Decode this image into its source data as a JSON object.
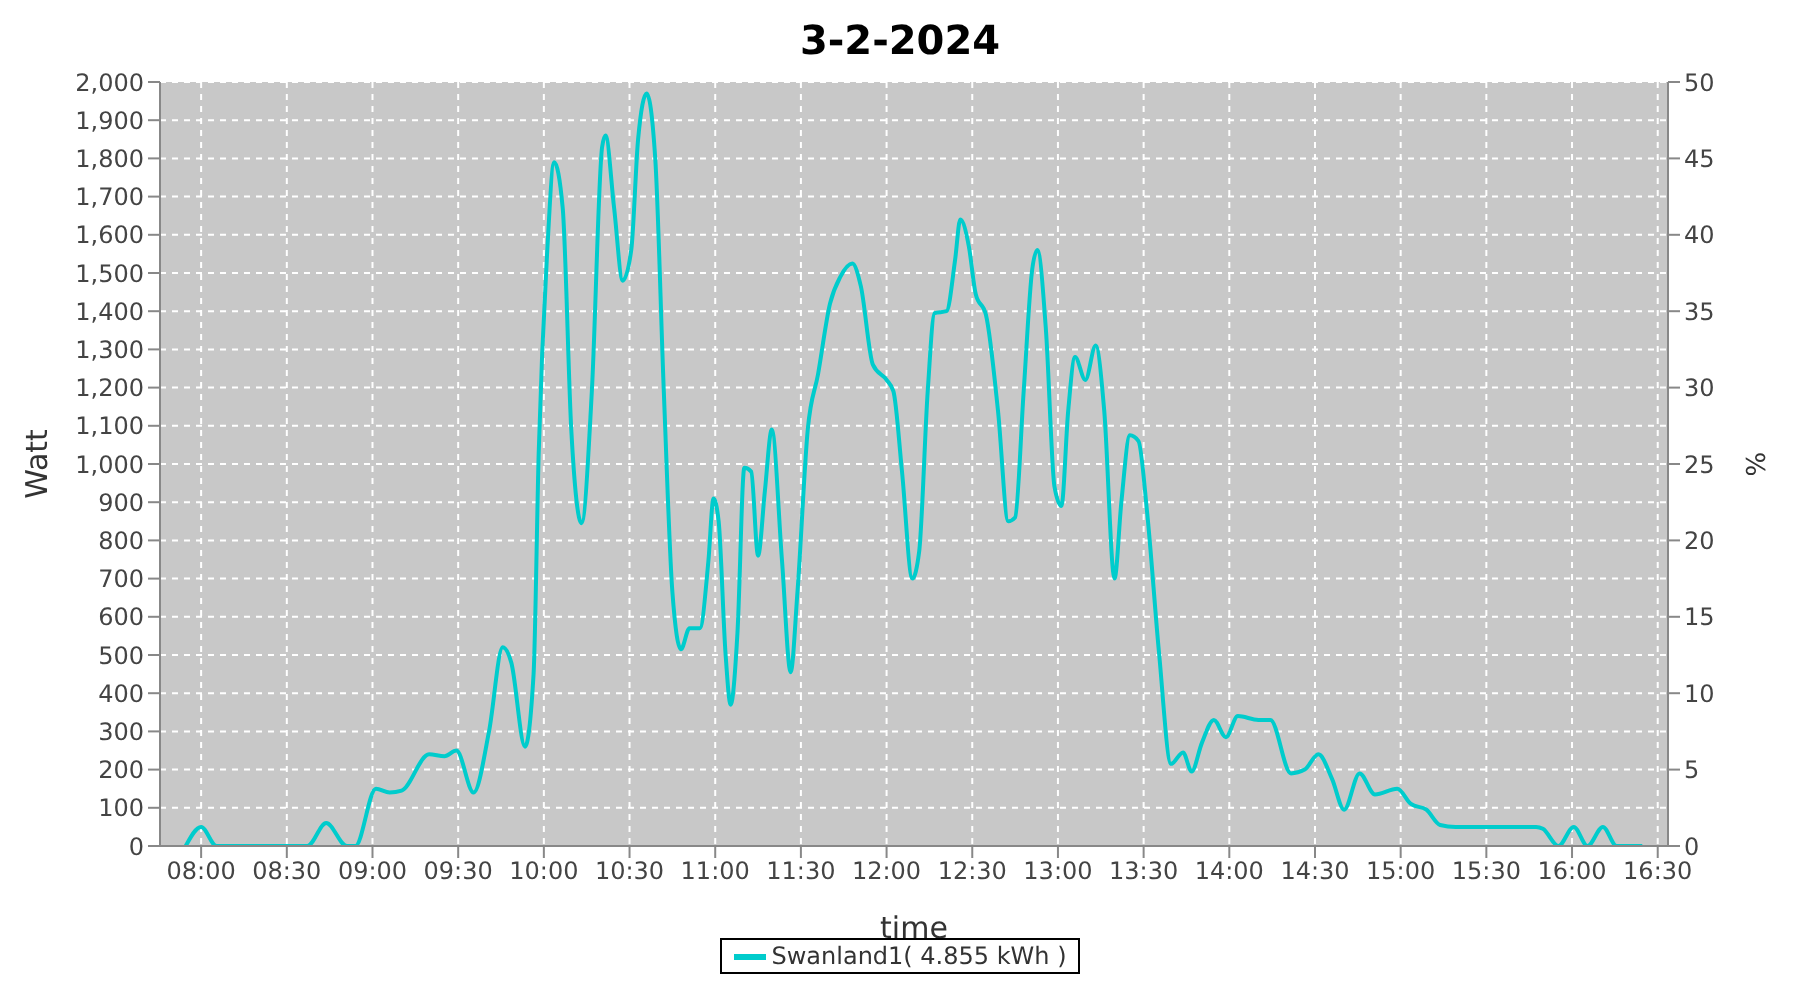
{
  "chart_data": {
    "type": "line",
    "title": "3-2-2024",
    "xlabel": "time",
    "ylabel": "Watt",
    "y2label": "%",
    "x": [
      7.91,
      8.0,
      8.09,
      8.5,
      8.62,
      8.73,
      8.85,
      8.9,
      9.02,
      9.1,
      9.17,
      9.33,
      9.42,
      9.49,
      9.59,
      9.68,
      9.76,
      9.81,
      9.89,
      9.94,
      9.97,
      10.02,
      10.06,
      10.11,
      10.16,
      10.22,
      10.28,
      10.34,
      10.36,
      10.41,
      10.46,
      10.51,
      10.55,
      10.6,
      10.65,
      10.7,
      10.75,
      10.8,
      10.85,
      10.91,
      10.96,
      10.99,
      11.02,
      11.06,
      11.09,
      11.13,
      11.17,
      11.21,
      11.25,
      11.29,
      11.33,
      11.39,
      11.44,
      11.48,
      11.54,
      11.6,
      11.67,
      11.73,
      11.8,
      11.85,
      11.92,
      12.0,
      12.04,
      12.09,
      12.15,
      12.19,
      12.24,
      12.28,
      12.35,
      12.4,
      12.43,
      12.48,
      12.52,
      12.58,
      12.65,
      12.71,
      12.75,
      12.8,
      12.85,
      12.88,
      12.93,
      12.98,
      13.02,
      13.06,
      13.1,
      13.16,
      13.22,
      13.27,
      13.33,
      13.37,
      13.42,
      13.47,
      13.52,
      13.59,
      13.66,
      13.73,
      13.78,
      13.84,
      13.91,
      13.98,
      14.05,
      14.17,
      14.24,
      14.36,
      14.44,
      14.52,
      14.6,
      14.67,
      14.76,
      14.85,
      14.98,
      15.06,
      15.15,
      15.23,
      15.32,
      15.79,
      15.83,
      15.92,
      16.01,
      16.09,
      16.18,
      16.26,
      16.41
    ],
    "series": [
      {
        "name": "Swanland1( 4.855 kWh )",
        "color": "#00cccc",
        "values": [
          0,
          50,
          0,
          0,
          0,
          60,
          0,
          0,
          150,
          140,
          145,
          240,
          235,
          250,
          140,
          300,
          520,
          480,
          260,
          450,
          1030,
          1560,
          1790,
          1670,
          1090,
          845,
          1190,
          1830,
          1860,
          1670,
          1480,
          1560,
          1850,
          1970,
          1800,
          1190,
          665,
          515,
          570,
          570,
          745,
          910,
          850,
          505,
          370,
          560,
          990,
          980,
          760,
          930,
          1090,
          745,
          455,
          665,
          1090,
          1235,
          1420,
          1490,
          1525,
          1465,
          1260,
          1220,
          1190,
          980,
          700,
          770,
          1190,
          1395,
          1400,
          1535,
          1640,
          1570,
          1445,
          1390,
          1140,
          850,
          860,
          1190,
          1510,
          1560,
          1350,
          940,
          890,
          1140,
          1280,
          1220,
          1310,
          1140,
          700,
          900,
          1075,
          1060,
          875,
          505,
          215,
          245,
          195,
          270,
          330,
          285,
          340,
          330,
          330,
          190,
          200,
          240,
          175,
          95,
          190,
          135,
          150,
          110,
          95,
          55,
          50,
          50,
          45,
          0,
          50,
          0,
          50,
          0,
          0
        ]
      }
    ],
    "xlim": [
      7.76,
      16.56
    ],
    "xticks": [
      {
        "value": 8,
        "label": "08:00"
      },
      {
        "value": 8.5,
        "label": "08:30"
      },
      {
        "value": 9,
        "label": "09:00"
      },
      {
        "value": 9.5,
        "label": "09:30"
      },
      {
        "value": 10,
        "label": "10:00"
      },
      {
        "value": 10.5,
        "label": "10:30"
      },
      {
        "value": 11,
        "label": "11:00"
      },
      {
        "value": 11.5,
        "label": "11:30"
      },
      {
        "value": 12,
        "label": "12:00"
      },
      {
        "value": 12.5,
        "label": "12:30"
      },
      {
        "value": 13,
        "label": "13:00"
      },
      {
        "value": 13.5,
        "label": "13:30"
      },
      {
        "value": 14,
        "label": "14:00"
      },
      {
        "value": 14.5,
        "label": "14:30"
      },
      {
        "value": 15,
        "label": "15:00"
      },
      {
        "value": 15.5,
        "label": "15:30"
      },
      {
        "value": 16,
        "label": "16:00"
      },
      {
        "value": 16.5,
        "label": "16:30"
      }
    ],
    "ylim": [
      0,
      2000
    ],
    "yticks": [
      0,
      100,
      200,
      300,
      400,
      500,
      600,
      700,
      800,
      900,
      {
        "value": 1000,
        "label": "1,000"
      },
      {
        "value": 1100,
        "label": "1,100"
      },
      {
        "value": 1200,
        "label": "1,200"
      },
      {
        "value": 1300,
        "label": "1,300"
      },
      {
        "value": 1400,
        "label": "1,400"
      },
      {
        "value": 1500,
        "label": "1,500"
      },
      {
        "value": 1600,
        "label": "1,600"
      },
      {
        "value": 1700,
        "label": "1,700"
      },
      {
        "value": 1800,
        "label": "1,800"
      },
      {
        "value": 1900,
        "label": "1,900"
      },
      {
        "value": 2000,
        "label": "2,000"
      }
    ],
    "y2lim": [
      0,
      50
    ],
    "y2ticks": [
      0,
      5,
      10,
      15,
      20,
      25,
      30,
      35,
      40,
      45,
      50
    ],
    "grid": true,
    "legend": "bottom",
    "marker": "none",
    "line_style": "solid"
  }
}
